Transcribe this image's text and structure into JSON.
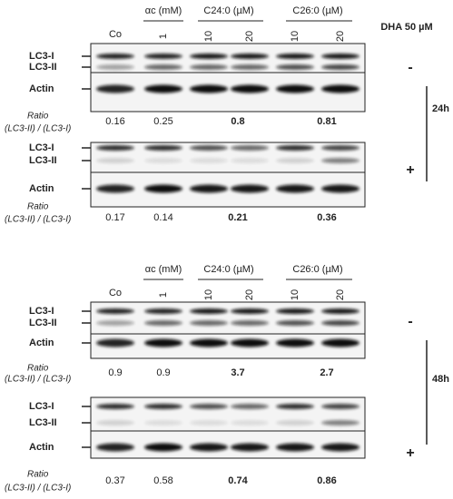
{
  "dha_label": "DHA 50 µM",
  "panels": [
    {
      "header": {
        "control": "Co",
        "alpha_c": "αc (mM)",
        "alpha_c_dose": "1",
        "c24": "C24:0 (µM)",
        "c24_doses": [
          "10",
          "20"
        ],
        "c26": "C26:0 (µM)",
        "c26_doses": [
          "10",
          "20"
        ]
      },
      "time": "24h",
      "blocks": [
        {
          "dha": "-",
          "bands": [
            "LC3-I",
            "LC3-II",
            "Actin"
          ],
          "ratio_label": [
            "Ratio",
            "(LC3-II) / (LC3-I)"
          ],
          "ratios": [
            0.16,
            0.25,
            0.8,
            0.81
          ]
        },
        {
          "dha": "+",
          "bands": [
            "LC3-I",
            "LC3-II",
            "Actin"
          ],
          "ratio_label": [
            "Ratio",
            "(LC3-II) / (LC3-I)"
          ],
          "ratios": [
            0.17,
            0.14,
            0.21,
            0.36
          ]
        }
      ]
    },
    {
      "header": {
        "control": "Co",
        "alpha_c": "αc (mM)",
        "alpha_c_dose": "1",
        "c24": "C24:0 (µM)",
        "c24_doses": [
          "10",
          "20"
        ],
        "c26": "C26:0 (µM)",
        "c26_doses": [
          "10",
          "20"
        ]
      },
      "time": "48h",
      "blocks": [
        {
          "dha": "-",
          "bands": [
            "LC3-I",
            "LC3-II",
            "Actin"
          ],
          "ratio_label": [
            "Ratio",
            "(LC3-II) / (LC3-I)"
          ],
          "ratios": [
            0.9,
            0.9,
            3.7,
            2.7
          ]
        },
        {
          "dha": "+",
          "bands": [
            "LC3-I",
            "LC3-II",
            "Actin"
          ],
          "ratio_label": [
            "Ratio",
            "(LC3-II) / (LC3-I)"
          ],
          "ratios": [
            0.37,
            0.58,
            0.74,
            0.86
          ]
        }
      ]
    }
  ]
}
